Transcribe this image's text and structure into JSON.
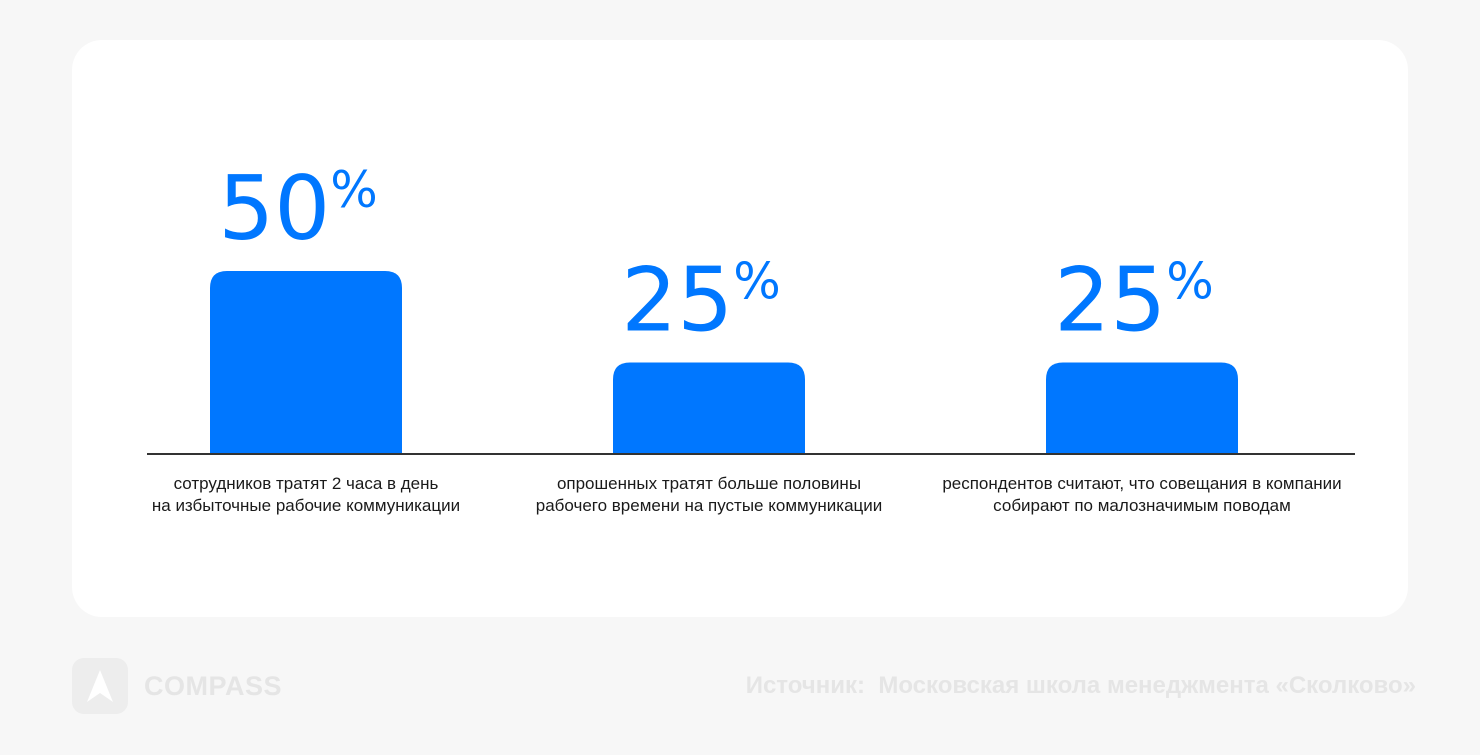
{
  "chart_data": {
    "type": "bar",
    "categories": [
      [
        "сотрудников тратят 2 часа в день",
        "на избыточные рабочие коммуникации"
      ],
      [
        "опрошенных тратят больше половины",
        "рабочего времени на пустые коммуникации"
      ],
      [
        "респондентов считают, что совещания в компании",
        "собирают по малозначимым поводам"
      ]
    ],
    "values": [
      50,
      25,
      25
    ],
    "value_labels": [
      "50",
      "25",
      "25"
    ],
    "value_suffix": "%",
    "ylim": [
      0,
      50
    ],
    "grid": false,
    "bar_color": "#0077ff",
    "axis_color": "#333333"
  },
  "footer": {
    "logo_text": "COMPASS",
    "logo_icon": "compass-arrow-icon",
    "source_label": "Источник:",
    "source_value": "Московская школа менеджмента «Сколково»"
  }
}
